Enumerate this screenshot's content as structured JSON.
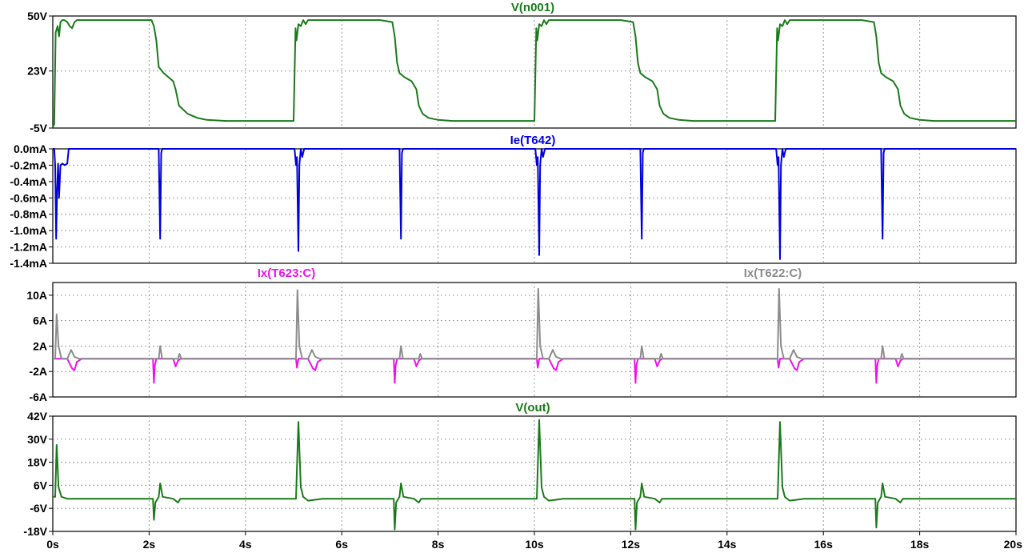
{
  "chart_data": {
    "type": "line",
    "title": "",
    "x_axis": {
      "label": "",
      "range": [
        0,
        20
      ],
      "ticks": [
        0,
        2,
        4,
        6,
        8,
        10,
        12,
        14,
        16,
        18,
        20
      ],
      "tick_labels": [
        "0s",
        "2s",
        "4s",
        "6s",
        "8s",
        "10s",
        "12s",
        "14s",
        "16s",
        "18s",
        "20s"
      ]
    },
    "grid": true,
    "panes": [
      {
        "name": "pane-vn001",
        "ylim": [
          -5,
          50
        ],
        "y_ticks": [
          -5,
          23,
          50
        ],
        "y_tick_labels": [
          "-5V",
          "23V",
          "50V"
        ],
        "series": [
          {
            "name": "V(n001)",
            "color": "#1a7a1a",
            "x": [
              0,
              0.03,
              0.06,
              0.1,
              0.13,
              0.16,
              0.2,
              0.24,
              0.3,
              0.35,
              0.4,
              0.45,
              0.5,
              0.8,
              1.6,
              2.05,
              2.1,
              2.15,
              2.2,
              2.3,
              2.4,
              2.5,
              2.55,
              2.62,
              2.8,
              3.0,
              3.2,
              3.6,
              4.0,
              5.0,
              5.04,
              5.06,
              5.1,
              5.15,
              5.2,
              5.25,
              5.3,
              5.4,
              5.5,
              5.6,
              5.8,
              6.3,
              6.8,
              7.05,
              7.1,
              7.15,
              7.2,
              7.3,
              7.45,
              7.55,
              7.6,
              7.68,
              7.8,
              8.0,
              8.3,
              8.6,
              9.0,
              10.0,
              10.04,
              10.06,
              10.1,
              10.15,
              10.2,
              10.25,
              10.3,
              10.4,
              10.5,
              10.6,
              10.8,
              11.3,
              11.8,
              12.05,
              12.1,
              12.15,
              12.2,
              12.3,
              12.45,
              12.55,
              12.6,
              12.68,
              12.8,
              13.0,
              13.3,
              13.6,
              14.0,
              15.0,
              15.04,
              15.06,
              15.1,
              15.15,
              15.2,
              15.25,
              15.3,
              15.4,
              15.5,
              15.6,
              15.8,
              16.3,
              16.8,
              17.05,
              17.1,
              17.15,
              17.2,
              17.3,
              17.45,
              17.55,
              17.6,
              17.68,
              17.8,
              18.0,
              18.3,
              18.6,
              19.0,
              20.0
            ],
            "y": [
              -4.5,
              -3,
              42,
              45,
              40,
              47,
              48,
              48,
              47,
              45,
              44,
              47,
              48,
              48,
              48,
              48,
              45,
              38,
              25,
              22,
              20,
              18,
              14,
              6,
              2,
              0,
              -1,
              -1.5,
              -1.5,
              -1.5,
              44,
              38,
              46,
              45,
              48,
              46,
              48,
              48,
              48,
              48,
              48,
              48,
              48,
              47,
              40,
              27,
              22,
              20,
              18,
              14,
              6,
              2,
              0,
              -1,
              -1.5,
              -1.5,
              -1.5,
              -1.5,
              44,
              38,
              46,
              45,
              48,
              46,
              48,
              48,
              48,
              48,
              48,
              48,
              48,
              47,
              40,
              27,
              22,
              20,
              18,
              14,
              6,
              2,
              0,
              -1,
              -1.5,
              -1.5,
              -1.5,
              -1.5,
              44,
              38,
              46,
              45,
              48,
              46,
              48,
              48,
              48,
              48,
              48,
              48,
              48,
              47,
              40,
              27,
              22,
              20,
              18,
              14,
              6,
              2,
              0,
              -1,
              -1.5,
              -1.5,
              -1.5,
              -1.5
            ]
          }
        ]
      },
      {
        "name": "pane-ie",
        "ylim": [
          -1.4,
          0
        ],
        "y_ticks": [
          0,
          -0.2,
          -0.4,
          -0.6,
          -0.8,
          -1.0,
          -1.2,
          -1.4
        ],
        "y_tick_labels": [
          "0.0mA",
          "-0.2mA",
          "-0.4mA",
          "-0.6mA",
          "-0.8mA",
          "-1.0mA",
          "-1.2mA",
          "-1.4mA"
        ],
        "series": [
          {
            "name": "Ie(T642)",
            "color": "#0000dd",
            "x": [
              0,
              0.03,
              0.05,
              0.07,
              0.09,
              0.11,
              0.13,
              0.16,
              0.2,
              0.25,
              0.3,
              0.33,
              0.36,
              2.2,
              2.23,
              2.25,
              2.27,
              2.3,
              5.02,
              5.05,
              5.07,
              5.1,
              5.12,
              5.15,
              5.18,
              5.22,
              7.2,
              7.23,
              7.25,
              7.27,
              7.3,
              10.02,
              10.05,
              10.07,
              10.1,
              10.12,
              10.15,
              10.18,
              10.22,
              12.2,
              12.23,
              12.25,
              12.27,
              12.3,
              15.02,
              15.05,
              15.07,
              15.1,
              15.12,
              15.15,
              15.18,
              15.22,
              17.2,
              17.23,
              17.25,
              17.27,
              17.3,
              20
            ],
            "y": [
              0,
              0,
              -0.2,
              -1.1,
              -0.5,
              -0.18,
              -0.6,
              -0.2,
              -0.18,
              -0.2,
              -0.18,
              0,
              0,
              0,
              -1.1,
              -0.05,
              0,
              0,
              0,
              -0.2,
              -0.1,
              -1.25,
              -0.2,
              0,
              -0.1,
              0,
              0,
              -1.1,
              -0.05,
              0,
              0,
              0,
              -0.2,
              -0.1,
              -1.3,
              -0.2,
              0,
              -0.1,
              0,
              0,
              -1.1,
              -0.05,
              0,
              0,
              0,
              -0.2,
              -0.1,
              -1.35,
              -0.2,
              0,
              -0.1,
              0,
              0,
              -1.1,
              -0.05,
              0,
              0,
              0
            ]
          }
        ]
      },
      {
        "name": "pane-ix",
        "ylim": [
          -6,
          12
        ],
        "y_ticks": [
          10,
          6,
          2,
          -2,
          -6
        ],
        "y_tick_labels": [
          "10A",
          "6A",
          "2A",
          "-2A",
          "-6A"
        ],
        "series": [
          {
            "name": "Ix(T623:C)",
            "color": "#ee11ee",
            "x": [
              0,
              0.3,
              0.4,
              0.45,
              0.5,
              0.6,
              2.08,
              2.1,
              2.12,
              2.15,
              2.5,
              2.55,
              2.6,
              2.65,
              5.05,
              5.07,
              5.1,
              5.3,
              5.4,
              5.45,
              5.5,
              5.6,
              7.08,
              7.1,
              7.12,
              7.15,
              7.5,
              7.55,
              7.6,
              7.65,
              10.05,
              10.07,
              10.1,
              10.3,
              10.4,
              10.45,
              10.5,
              10.6,
              12.08,
              12.1,
              12.12,
              12.15,
              12.5,
              12.55,
              12.6,
              12.65,
              15.05,
              15.07,
              15.1,
              15.3,
              15.4,
              15.45,
              15.5,
              15.6,
              17.08,
              17.1,
              17.12,
              17.15,
              17.5,
              17.55,
              17.6,
              17.65,
              20
            ],
            "y": [
              0,
              0,
              -1.5,
              -1.8,
              -0.5,
              0,
              0,
              -3.8,
              -1,
              0,
              0,
              -1.2,
              -0.3,
              0,
              0,
              -1.4,
              0,
              0,
              -1.5,
              -1.8,
              -0.5,
              0,
              0,
              -3.8,
              -1,
              0,
              0,
              -1.2,
              -0.3,
              0,
              0,
              -1.4,
              0,
              0,
              -1.5,
              -1.8,
              -0.5,
              0,
              0,
              -3.8,
              -1,
              0,
              0,
              -1.2,
              -0.3,
              0,
              0,
              -1.4,
              0,
              0,
              -1.5,
              -1.8,
              -0.5,
              0,
              0,
              -3.8,
              -1,
              0,
              0,
              -1.2,
              -0.3,
              0,
              0
            ]
          },
          {
            "name": "Ix(T622:C)",
            "color": "#8c8c8c",
            "x": [
              0,
              0.05,
              0.08,
              0.12,
              0.18,
              0.3,
              0.38,
              0.45,
              0.55,
              2.2,
              2.23,
              2.27,
              2.6,
              2.63,
              2.67,
              5.05,
              5.08,
              5.12,
              5.18,
              5.3,
              5.38,
              5.45,
              5.55,
              7.2,
              7.23,
              7.27,
              7.6,
              7.63,
              7.67,
              10.05,
              10.08,
              10.12,
              10.18,
              10.3,
              10.38,
              10.45,
              10.55,
              12.2,
              12.23,
              12.27,
              12.6,
              12.63,
              12.67,
              15.05,
              15.08,
              15.12,
              15.18,
              15.3,
              15.38,
              15.45,
              15.55,
              17.2,
              17.23,
              17.27,
              17.6,
              17.63,
              17.67,
              20
            ],
            "y": [
              0,
              0,
              7,
              2,
              0,
              0,
              1.4,
              0.3,
              0,
              0,
              2,
              0,
              0,
              0.8,
              0,
              0,
              10.8,
              2,
              0,
              0,
              1.4,
              0.3,
              0,
              0,
              2,
              0,
              0,
              0.8,
              0,
              0,
              11,
              2,
              0,
              0,
              1.4,
              0.3,
              0,
              0,
              2,
              0,
              0,
              0.8,
              0,
              0,
              11,
              2,
              0,
              0,
              1.4,
              0.3,
              0,
              0,
              2,
              0,
              0,
              0.8,
              0,
              0
            ]
          }
        ]
      },
      {
        "name": "pane-vout",
        "ylim": [
          -18,
          42
        ],
        "y_ticks": [
          42,
          30,
          18,
          6,
          -6,
          -18
        ],
        "y_tick_labels": [
          "42V",
          "30V",
          "18V",
          "6V",
          "-6V",
          "-18V"
        ],
        "series": [
          {
            "name": "V(out)",
            "color": "#1a7a1a",
            "x": [
              0,
              0.05,
              0.08,
              0.12,
              0.18,
              0.3,
              0.6,
              2.0,
              2.08,
              2.1,
              2.13,
              2.2,
              2.23,
              2.28,
              2.5,
              2.6,
              2.65,
              5.0,
              5.05,
              5.1,
              5.15,
              5.2,
              5.3,
              5.6,
              7.0,
              7.08,
              7.1,
              7.13,
              7.2,
              7.23,
              7.28,
              7.5,
              7.6,
              7.65,
              10.0,
              10.05,
              10.1,
              10.15,
              10.2,
              10.3,
              10.6,
              12.0,
              12.08,
              12.1,
              12.13,
              12.2,
              12.23,
              12.28,
              12.5,
              12.6,
              12.65,
              15.0,
              15.05,
              15.1,
              15.15,
              15.2,
              15.3,
              15.6,
              17.0,
              17.08,
              17.1,
              17.13,
              17.2,
              17.23,
              17.28,
              17.5,
              17.6,
              17.65,
              20.0
            ],
            "y": [
              0,
              0,
              27,
              5,
              0,
              -1,
              -1,
              -1,
              -1,
              -12,
              -3,
              0,
              7,
              0,
              -1,
              -3,
              -1,
              -1,
              -1,
              39,
              5,
              0,
              -2,
              -1,
              -1,
              -1,
              -17,
              -3,
              0,
              7,
              0,
              -1,
              -3,
              -1,
              -1,
              -1,
              40,
              5,
              0,
              -2,
              -1,
              -1,
              -1,
              -17,
              -3,
              0,
              7,
              0,
              -1,
              -3,
              -1,
              -1,
              -1,
              39,
              5,
              0,
              -2,
              -1,
              -1,
              -1,
              -16,
              -3,
              0,
              7,
              0,
              -1,
              -3,
              -1,
              -1
            ]
          }
        ]
      }
    ]
  }
}
